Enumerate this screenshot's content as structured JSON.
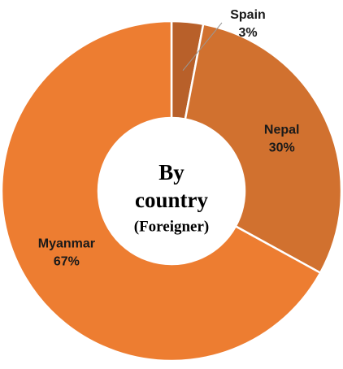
{
  "chart_data": {
    "type": "donut",
    "title_lines": [
      "By",
      "country"
    ],
    "subtitle": "(Foreigner)",
    "categories": [
      "Spain",
      "Nepal",
      "Myanmar"
    ],
    "values": [
      3,
      30,
      67
    ],
    "value_labels": [
      "3%",
      "30%",
      "67%"
    ],
    "colors": [
      "#b8602a",
      "#d1712f",
      "#ed7d31"
    ]
  }
}
